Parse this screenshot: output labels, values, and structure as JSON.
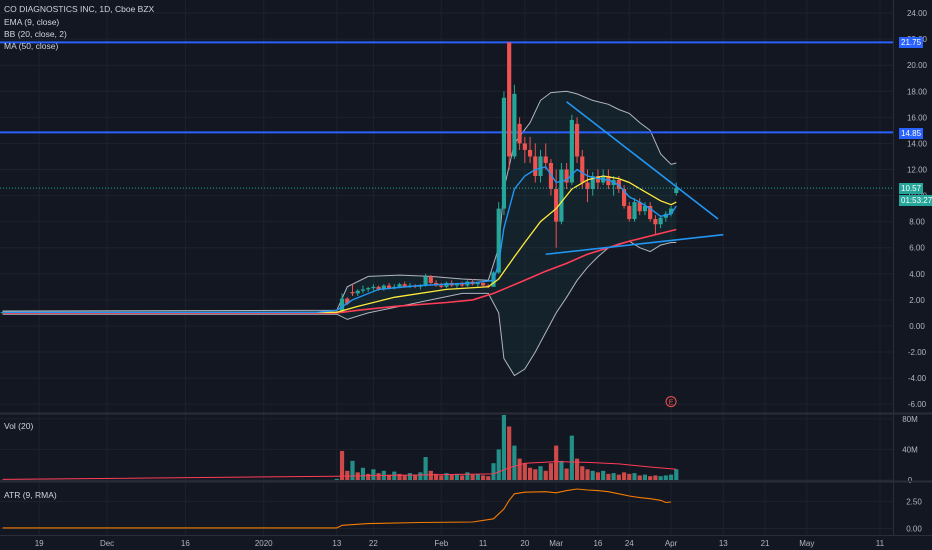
{
  "header": {
    "symbol_title": "CO DIAGNOSTICS INC, 1D, Cboe BZX",
    "indicators": [
      "EMA (9, close)",
      "BB (20, close, 2)",
      "MA (50, close)"
    ]
  },
  "price_axis": {
    "ticks": [
      "24.00",
      "22.00",
      "20.00",
      "18.00",
      "16.00",
      "14.00",
      "12.00",
      "10.00",
      "8.00",
      "6.00",
      "4.00",
      "2.00",
      "0.00",
      "-2.00",
      "-4.00",
      "-6.00"
    ],
    "range": [
      -6.6,
      25.0
    ]
  },
  "time_axis": {
    "ticks": [
      "19",
      "Dec",
      "16",
      "2020",
      "13",
      "22",
      "Feb",
      "11",
      "20",
      "Mar",
      "16",
      "24",
      "Apr",
      "13",
      "21",
      "May",
      "11"
    ]
  },
  "price_tags": {
    "resistance_high": "21.75",
    "resistance_mid": "14.85",
    "last_price": "10.57",
    "countdown": "01:53:27"
  },
  "earnings_marker": "E",
  "volume_pane": {
    "label": "Vol (20)",
    "ticks": [
      "80M",
      "40M",
      "0"
    ],
    "range": [
      0,
      85
    ]
  },
  "atr_pane": {
    "label": "ATR (9, RMA)",
    "ticks": [
      "2.50",
      "0.00"
    ],
    "range": [
      -0.6,
      4.2
    ]
  },
  "colors": {
    "background": "#131722",
    "up": "#26a69a",
    "down": "#ef5350",
    "ema": "#2196f3",
    "ma50": "#ff3d57",
    "bb_mid": "#ffeb3b",
    "bb_band": "#b2b5be",
    "level_line": "#2962ff",
    "atr": "#f57c00",
    "grid": "#1e222d"
  },
  "chart_data": {
    "type": "candlestick",
    "x_range": [
      0,
      171
    ],
    "horizontal_levels": [
      21.75,
      14.85
    ],
    "trendlines": [
      {
        "name": "upper",
        "from": [
          108,
          17.2
        ],
        "to": [
          137,
          8.2
        ]
      },
      {
        "name": "lower",
        "from": [
          104,
          5.5
        ],
        "to": [
          138,
          7.0
        ]
      }
    ],
    "candles": [
      [
        0,
        1.0,
        1.1,
        0.95,
        1.05
      ],
      [
        10,
        1.05,
        1.1,
        1.0,
        1.0
      ],
      [
        20,
        1.0,
        1.08,
        0.98,
        1.05
      ],
      [
        30,
        1.05,
        1.1,
        1.0,
        1.02
      ],
      [
        40,
        1.02,
        1.08,
        0.98,
        1.05
      ],
      [
        50,
        1.05,
        1.1,
        1.0,
        1.03
      ],
      [
        55,
        1.03,
        1.08,
        1.0,
        1.05
      ],
      [
        60,
        1.05,
        1.1,
        1.0,
        1.02
      ],
      [
        64,
        1.1,
        1.2,
        0.95,
        1.0
      ],
      [
        65,
        1.0,
        2.5,
        1.0,
        2.1
      ],
      [
        66,
        2.1,
        2.2,
        1.6,
        1.7
      ],
      [
        67,
        2.6,
        3.2,
        2.3,
        2.5
      ],
      [
        68,
        2.5,
        2.8,
        2.3,
        2.7
      ],
      [
        69,
        2.7,
        3.1,
        2.5,
        2.8
      ],
      [
        70,
        2.8,
        3.0,
        2.6,
        2.9
      ],
      [
        71,
        2.9,
        3.2,
        2.7,
        3.0
      ],
      [
        72,
        3.0,
        3.1,
        2.7,
        2.8
      ],
      [
        73,
        2.8,
        3.2,
        2.7,
        3.1
      ],
      [
        74,
        3.1,
        3.3,
        2.8,
        2.9
      ],
      [
        75,
        2.9,
        3.2,
        2.8,
        3.0
      ],
      [
        76,
        3.0,
        3.3,
        2.9,
        3.2
      ],
      [
        77,
        3.2,
        3.4,
        3.0,
        3.0
      ],
      [
        78,
        3.0,
        3.3,
        2.9,
        3.1
      ],
      [
        79,
        3.1,
        3.2,
        2.9,
        3.0
      ],
      [
        80,
        3.0,
        3.2,
        2.8,
        3.1
      ],
      [
        81,
        3.1,
        4.0,
        3.0,
        3.8
      ],
      [
        82,
        3.8,
        3.9,
        3.2,
        3.3
      ],
      [
        83,
        3.3,
        3.5,
        3.0,
        3.1
      ],
      [
        84,
        3.1,
        3.3,
        2.9,
        3.0
      ],
      [
        85,
        3.0,
        3.4,
        2.9,
        3.3
      ],
      [
        86,
        3.3,
        3.5,
        3.0,
        3.1
      ],
      [
        87,
        3.1,
        3.3,
        2.9,
        3.2
      ],
      [
        88,
        3.2,
        3.4,
        3.0,
        3.1
      ],
      [
        89,
        3.1,
        3.5,
        3.0,
        3.4
      ],
      [
        90,
        3.4,
        3.6,
        3.1,
        3.2
      ],
      [
        91,
        3.2,
        3.4,
        3.0,
        3.3
      ],
      [
        92,
        3.3,
        3.4,
        3.0,
        3.1
      ],
      [
        93,
        3.1,
        3.2,
        2.9,
        3.0
      ],
      [
        94,
        3.0,
        4.2,
        3.0,
        4.1
      ],
      [
        95,
        4.1,
        9.5,
        4.0,
        9.0
      ],
      [
        96,
        9.0,
        18.0,
        8.5,
        17.5
      ],
      [
        97,
        21.75,
        21.75,
        12.0,
        13.0
      ],
      [
        98,
        13.0,
        18.5,
        12.8,
        17.8
      ],
      [
        99,
        15.5,
        16.0,
        13.5,
        14.0
      ],
      [
        100,
        14.0,
        14.5,
        12.5,
        13.5
      ],
      [
        101,
        13.5,
        14.5,
        12.5,
        13.0
      ],
      [
        102,
        13.0,
        14.0,
        11.0,
        11.5
      ],
      [
        103,
        11.5,
        13.5,
        11.0,
        13.0
      ],
      [
        104,
        13.0,
        14.0,
        12.0,
        12.5
      ],
      [
        105,
        12.5,
        12.8,
        10.0,
        10.5
      ],
      [
        106,
        10.5,
        12.0,
        6.0,
        8.0
      ],
      [
        107,
        8.0,
        12.5,
        7.8,
        12.0
      ],
      [
        108,
        12.0,
        12.5,
        10.5,
        11.0
      ],
      [
        109,
        11.0,
        16.2,
        10.8,
        15.8
      ],
      [
        110,
        15.5,
        16.0,
        12.5,
        13.0
      ],
      [
        111,
        13.0,
        13.5,
        10.5,
        11.0
      ],
      [
        112,
        11.0,
        12.0,
        9.5,
        10.5
      ],
      [
        113,
        10.5,
        11.8,
        10.0,
        11.5
      ],
      [
        114,
        11.5,
        12.0,
        10.5,
        11.0
      ],
      [
        115,
        11.0,
        12.0,
        10.8,
        11.5
      ],
      [
        116,
        11.5,
        12.0,
        10.5,
        10.8
      ],
      [
        117,
        10.8,
        11.5,
        10.0,
        11.2
      ],
      [
        118,
        11.2,
        11.5,
        10.2,
        10.5
      ],
      [
        119,
        10.5,
        10.8,
        9.0,
        9.2
      ],
      [
        120,
        9.2,
        9.5,
        8.0,
        8.2
      ],
      [
        121,
        8.2,
        9.8,
        8.0,
        9.5
      ],
      [
        122,
        9.5,
        9.8,
        8.5,
        8.8
      ],
      [
        123,
        8.8,
        9.5,
        8.5,
        9.2
      ],
      [
        124,
        9.2,
        9.5,
        8.0,
        8.2
      ],
      [
        125,
        8.2,
        8.5,
        7.0,
        7.8
      ],
      [
        126,
        7.8,
        8.5,
        7.5,
        8.3
      ],
      [
        127,
        8.3,
        8.8,
        8.0,
        8.6
      ],
      [
        128,
        8.6,
        9.2,
        8.4,
        9.0
      ],
      [
        129,
        10.2,
        11.0,
        10.0,
        10.57
      ]
    ],
    "volume": [
      [
        64,
        1.5,
        1
      ],
      [
        65,
        38,
        0
      ],
      [
        66,
        12,
        0
      ],
      [
        67,
        25,
        1
      ],
      [
        68,
        10,
        0
      ],
      [
        69,
        16,
        1
      ],
      [
        70,
        8,
        0
      ],
      [
        71,
        14,
        1
      ],
      [
        72,
        9,
        0
      ],
      [
        73,
        12,
        1
      ],
      [
        74,
        7,
        0
      ],
      [
        75,
        11,
        1
      ],
      [
        76,
        8,
        0
      ],
      [
        77,
        6,
        0
      ],
      [
        78,
        9,
        1
      ],
      [
        79,
        7,
        0
      ],
      [
        80,
        10,
        1
      ],
      [
        81,
        30,
        1
      ],
      [
        82,
        12,
        0
      ],
      [
        83,
        8,
        0
      ],
      [
        84,
        6,
        0
      ],
      [
        85,
        9,
        1
      ],
      [
        86,
        7,
        0
      ],
      [
        87,
        8,
        1
      ],
      [
        88,
        6,
        0
      ],
      [
        89,
        10,
        1
      ],
      [
        90,
        7,
        0
      ],
      [
        91,
        8,
        1
      ],
      [
        92,
        6,
        0
      ],
      [
        93,
        5,
        0
      ],
      [
        94,
        22,
        1
      ],
      [
        95,
        40,
        1
      ],
      [
        96,
        85,
        1
      ],
      [
        97,
        70,
        0
      ],
      [
        98,
        45,
        1
      ],
      [
        99,
        28,
        0
      ],
      [
        100,
        22,
        0
      ],
      [
        101,
        16,
        0
      ],
      [
        102,
        14,
        0
      ],
      [
        103,
        18,
        1
      ],
      [
        104,
        12,
        0
      ],
      [
        105,
        22,
        0
      ],
      [
        106,
        45,
        0
      ],
      [
        107,
        25,
        1
      ],
      [
        108,
        15,
        0
      ],
      [
        109,
        58,
        1
      ],
      [
        110,
        28,
        0
      ],
      [
        111,
        18,
        0
      ],
      [
        112,
        14,
        0
      ],
      [
        113,
        12,
        1
      ],
      [
        114,
        10,
        0
      ],
      [
        115,
        12,
        1
      ],
      [
        116,
        8,
        0
      ],
      [
        117,
        9,
        1
      ],
      [
        118,
        7,
        0
      ],
      [
        119,
        10,
        0
      ],
      [
        120,
        8,
        0
      ],
      [
        121,
        9,
        1
      ],
      [
        122,
        6,
        0
      ],
      [
        123,
        7,
        1
      ],
      [
        124,
        5,
        0
      ],
      [
        125,
        6,
        0
      ],
      [
        126,
        5,
        1
      ],
      [
        127,
        6,
        1
      ],
      [
        128,
        7,
        1
      ],
      [
        129,
        14,
        1
      ]
    ],
    "volume_ma": [
      [
        64,
        5
      ],
      [
        94,
        8
      ],
      [
        97,
        16
      ],
      [
        100,
        22
      ],
      [
        106,
        24
      ],
      [
        112,
        23
      ],
      [
        118,
        21
      ],
      [
        124,
        17
      ],
      [
        129,
        14
      ]
    ],
    "ema": [
      [
        0,
        1.05
      ],
      [
        60,
        1.05
      ],
      [
        64,
        1.2
      ],
      [
        67,
        2.0
      ],
      [
        72,
        2.8
      ],
      [
        80,
        3.1
      ],
      [
        90,
        3.3
      ],
      [
        94,
        3.5
      ],
      [
        95,
        4.8
      ],
      [
        96,
        7.5
      ],
      [
        98,
        10.5
      ],
      [
        100,
        11.5
      ],
      [
        102,
        12.0
      ],
      [
        104,
        12.2
      ],
      [
        106,
        11.0
      ],
      [
        108,
        11.2
      ],
      [
        110,
        12.0
      ],
      [
        112,
        11.5
      ],
      [
        114,
        11.3
      ],
      [
        116,
        11.2
      ],
      [
        118,
        10.8
      ],
      [
        120,
        9.9
      ],
      [
        122,
        9.5
      ],
      [
        124,
        9.0
      ],
      [
        126,
        8.4
      ],
      [
        128,
        8.6
      ],
      [
        129,
        9.2
      ]
    ],
    "bb_mid": [
      [
        0,
        1.05
      ],
      [
        64,
        1.05
      ],
      [
        68,
        1.5
      ],
      [
        75,
        2.2
      ],
      [
        85,
        2.8
      ],
      [
        93,
        3.0
      ],
      [
        95,
        3.6
      ],
      [
        98,
        5.3
      ],
      [
        100,
        6.4
      ],
      [
        103,
        8.0
      ],
      [
        106,
        9.0
      ],
      [
        109,
        10.5
      ],
      [
        112,
        11.2
      ],
      [
        115,
        11.5
      ],
      [
        118,
        11.3
      ],
      [
        120,
        11.0
      ],
      [
        123,
        10.3
      ],
      [
        126,
        9.6
      ],
      [
        128,
        9.3
      ],
      [
        129,
        9.5
      ]
    ],
    "bb_upper": [
      [
        0,
        1.15
      ],
      [
        64,
        1.2
      ],
      [
        66,
        3.0
      ],
      [
        70,
        3.8
      ],
      [
        76,
        3.9
      ],
      [
        82,
        3.8
      ],
      [
        88,
        3.6
      ],
      [
        93,
        3.5
      ],
      [
        95,
        6.0
      ],
      [
        96,
        10.5
      ],
      [
        98,
        14.0
      ],
      [
        101,
        15.6
      ],
      [
        103,
        17.3
      ],
      [
        105,
        17.9
      ],
      [
        108,
        18.0
      ],
      [
        110,
        17.8
      ],
      [
        113,
        17.3
      ],
      [
        116,
        17.0
      ],
      [
        118,
        16.6
      ],
      [
        120,
        16.3
      ],
      [
        122,
        15.6
      ],
      [
        124,
        15.0
      ],
      [
        126,
        13.2
      ],
      [
        127,
        12.8
      ],
      [
        128,
        12.4
      ],
      [
        129,
        12.5
      ]
    ],
    "bb_lower": [
      [
        0,
        0.9
      ],
      [
        64,
        0.9
      ],
      [
        66,
        0.5
      ],
      [
        70,
        1.0
      ],
      [
        76,
        1.5
      ],
      [
        82,
        2.0
      ],
      [
        88,
        2.5
      ],
      [
        93,
        2.5
      ],
      [
        95,
        1.0
      ],
      [
        96,
        -2.5
      ],
      [
        98,
        -3.8
      ],
      [
        100,
        -3.3
      ],
      [
        102,
        -2.0
      ],
      [
        104,
        -0.5
      ],
      [
        106,
        1.0
      ],
      [
        108,
        2.2
      ],
      [
        110,
        3.5
      ],
      [
        112,
        4.5
      ],
      [
        114,
        5.3
      ],
      [
        116,
        6.0
      ],
      [
        118,
        6.3
      ],
      [
        120,
        6.5
      ],
      [
        122,
        6.0
      ],
      [
        124,
        5.7
      ],
      [
        126,
        6.2
      ],
      [
        128,
        6.4
      ],
      [
        129,
        6.4
      ]
    ],
    "ma50": [
      [
        0,
        1.0
      ],
      [
        64,
        1.0
      ],
      [
        68,
        1.2
      ],
      [
        75,
        1.5
      ],
      [
        85,
        1.8
      ],
      [
        90,
        2.0
      ],
      [
        94,
        2.5
      ],
      [
        97,
        3.0
      ],
      [
        100,
        3.5
      ],
      [
        104,
        4.2
      ],
      [
        108,
        4.8
      ],
      [
        112,
        5.5
      ],
      [
        116,
        6.0
      ],
      [
        120,
        6.5
      ],
      [
        125,
        7.0
      ],
      [
        129,
        7.4
      ]
    ],
    "atr": [
      [
        0,
        0.06
      ],
      [
        64,
        0.06
      ],
      [
        65,
        0.3
      ],
      [
        70,
        0.45
      ],
      [
        80,
        0.55
      ],
      [
        90,
        0.6
      ],
      [
        94,
        0.9
      ],
      [
        96,
        1.8
      ],
      [
        97,
        2.6
      ],
      [
        98,
        3.2
      ],
      [
        100,
        3.35
      ],
      [
        104,
        3.4
      ],
      [
        106,
        3.3
      ],
      [
        108,
        3.5
      ],
      [
        110,
        3.65
      ],
      [
        112,
        3.55
      ],
      [
        114,
        3.5
      ],
      [
        116,
        3.4
      ],
      [
        118,
        3.2
      ],
      [
        120,
        3.0
      ],
      [
        122,
        2.85
      ],
      [
        124,
        2.75
      ],
      [
        126,
        2.6
      ],
      [
        127,
        2.4
      ],
      [
        128,
        2.45
      ]
    ]
  }
}
